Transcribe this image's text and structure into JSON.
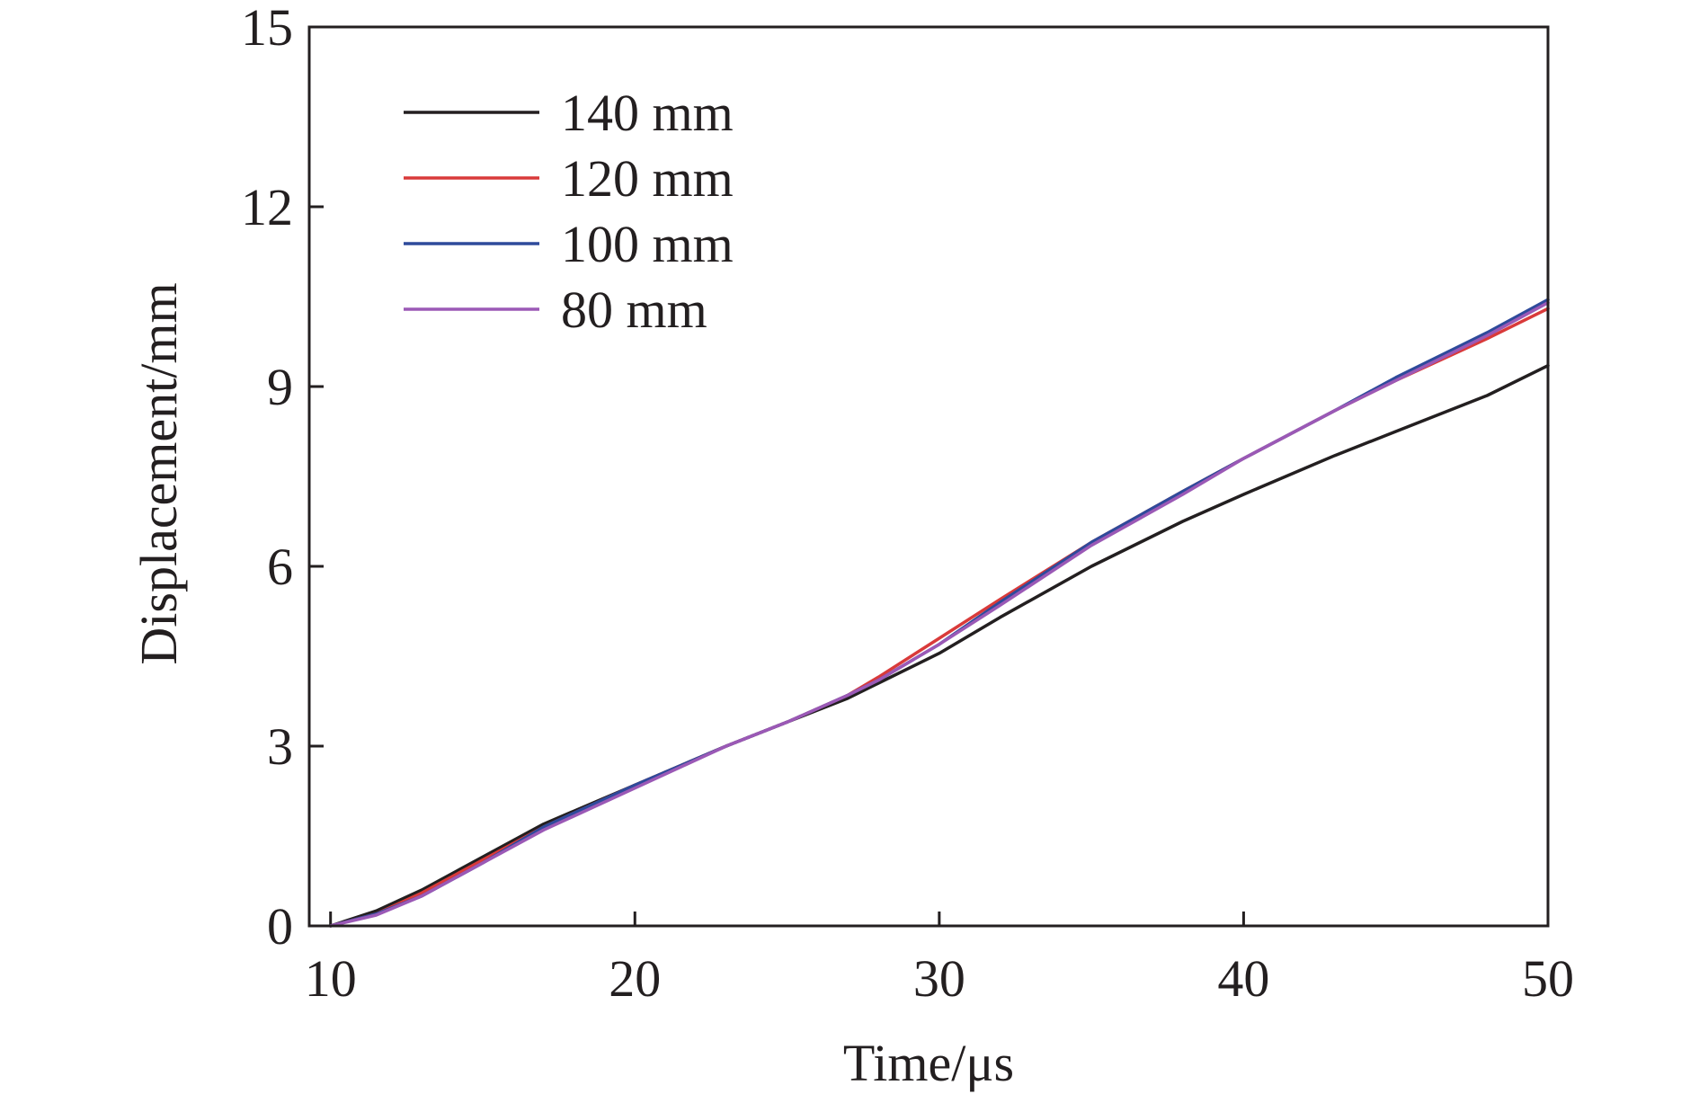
{
  "chart_data": {
    "type": "line",
    "title": "",
    "xlabel": "Time/μs",
    "ylabel": "Displacement/mm",
    "xlim": [
      9.3,
      50
    ],
    "ylim": [
      0,
      15
    ],
    "xticks": [
      10,
      20,
      30,
      40,
      50
    ],
    "yticks": [
      0,
      3,
      6,
      9,
      12,
      15
    ],
    "grid": false,
    "legend_position": "top-left",
    "series": [
      {
        "name": "140 mm",
        "color": "#231f20",
        "x": [
          10,
          11.5,
          13,
          15,
          17,
          20,
          23,
          25,
          27,
          28,
          30,
          32,
          35,
          38,
          40,
          43,
          45,
          48,
          50
        ],
        "y": [
          0,
          0.25,
          0.6,
          1.15,
          1.7,
          2.35,
          3.0,
          3.4,
          3.8,
          4.05,
          4.55,
          5.15,
          6.0,
          6.75,
          7.2,
          7.85,
          8.25,
          8.85,
          9.35
        ]
      },
      {
        "name": "120 mm",
        "color": "#d93a3a",
        "x": [
          10,
          11.5,
          13,
          15,
          17,
          20,
          23,
          25,
          27,
          28,
          30,
          32,
          35,
          38,
          40,
          43,
          45,
          48,
          50
        ],
        "y": [
          0,
          0.2,
          0.55,
          1.1,
          1.65,
          2.35,
          3.0,
          3.4,
          3.85,
          4.15,
          4.8,
          5.45,
          6.4,
          7.25,
          7.8,
          8.6,
          9.1,
          9.8,
          10.3
        ]
      },
      {
        "name": "100 mm",
        "color": "#2e4a9b",
        "x": [
          10,
          11.5,
          13,
          15,
          17,
          20,
          23,
          25,
          27,
          28,
          30,
          32,
          35,
          38,
          40,
          43,
          45,
          48,
          50
        ],
        "y": [
          0,
          0.2,
          0.5,
          1.05,
          1.65,
          2.35,
          3.0,
          3.4,
          3.85,
          4.1,
          4.7,
          5.4,
          6.4,
          7.25,
          7.8,
          8.6,
          9.15,
          9.9,
          10.45
        ]
      },
      {
        "name": "80 mm",
        "color": "#9b59b6",
        "x": [
          10,
          11.5,
          13,
          15,
          17,
          20,
          23,
          25,
          27,
          28,
          30,
          32,
          35,
          38,
          40,
          43,
          45,
          48,
          50
        ],
        "y": [
          0,
          0.18,
          0.5,
          1.05,
          1.6,
          2.3,
          3.0,
          3.4,
          3.85,
          4.1,
          4.7,
          5.35,
          6.35,
          7.2,
          7.8,
          8.6,
          9.1,
          9.85,
          10.4
        ]
      }
    ]
  }
}
